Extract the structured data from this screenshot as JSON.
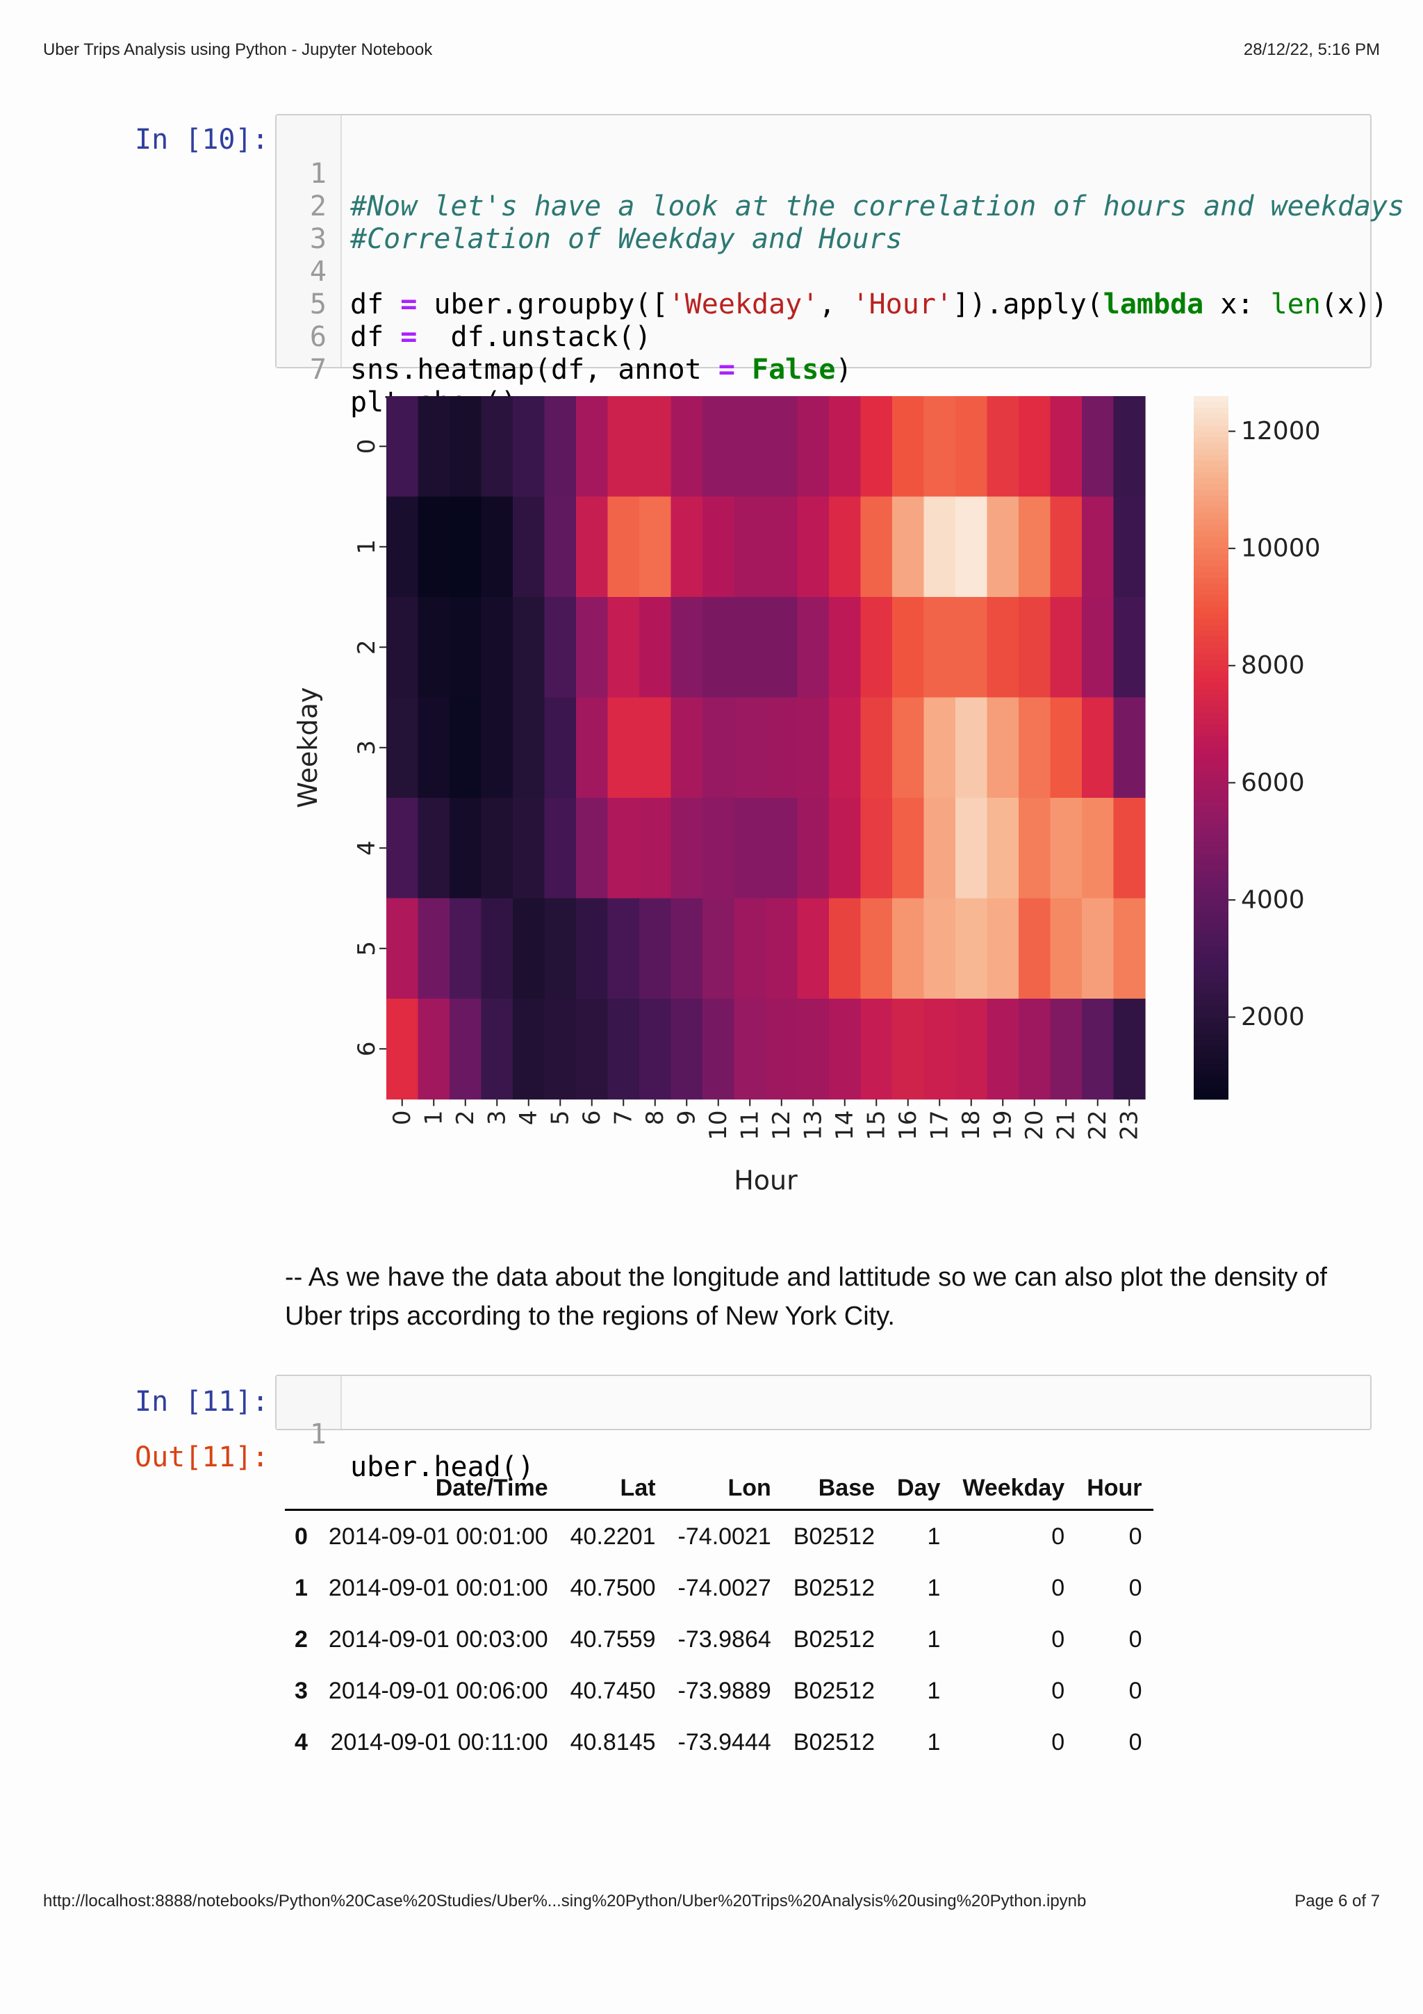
{
  "header": {
    "title": "Uber Trips Analysis using Python - Jupyter Notebook",
    "datetime": "28/12/22, 5:16 PM"
  },
  "footer": {
    "url": "http://localhost:8888/notebooks/Python%20Case%20Studies/Uber%...sing%20Python/Uber%20Trips%20Analysis%20using%20Python.ipynb",
    "page": "Page 6 of 7"
  },
  "cell10": {
    "prompt": "In [10]:",
    "line_numbers": [
      "1",
      "2",
      "3",
      "4",
      "5",
      "6",
      "7"
    ],
    "lines": {
      "l1": "#Now let's have a look at the correlation of hours and weekdays",
      "l2": "#Correlation of Weekday and Hours",
      "l4_a": "df ",
      "l4_eq": "=",
      "l4_b": " uber.groupby([",
      "l4_s1": "'Weekday'",
      "l4_c": ", ",
      "l4_s2": "'Hour'",
      "l4_d": "]).apply(",
      "l4_kw": "lambda",
      "l4_e": " x: ",
      "l4_bi": "len",
      "l4_f": "(x))",
      "l5_a": "df ",
      "l5_eq": "=",
      "l5_b": "  df.unstack()",
      "l6_a": "sns.heatmap(df, annot ",
      "l6_eq": "=",
      "l6_sp": " ",
      "l6_kw": "False",
      "l6_b": ")",
      "l7": "plt.show()"
    }
  },
  "markdown": {
    "text": "-- As we have the data about the longitude and lattitude so we can also plot the density of Uber trips according to the regions of New York City."
  },
  "cell11": {
    "prompt_in": "In [11]:",
    "prompt_out": "Out[11]:",
    "line_number": "1",
    "code": "uber.head()"
  },
  "table": {
    "columns": [
      "",
      "Date/Time",
      "Lat",
      "Lon",
      "Base",
      "Day",
      "Weekday",
      "Hour"
    ],
    "rows": [
      [
        "0",
        "2014-09-01 00:01:00",
        "40.2201",
        "-74.0021",
        "B02512",
        "1",
        "0",
        "0"
      ],
      [
        "1",
        "2014-09-01 00:01:00",
        "40.7500",
        "-74.0027",
        "B02512",
        "1",
        "0",
        "0"
      ],
      [
        "2",
        "2014-09-01 00:03:00",
        "40.7559",
        "-73.9864",
        "B02512",
        "1",
        "0",
        "0"
      ],
      [
        "3",
        "2014-09-01 00:06:00",
        "40.7450",
        "-73.9889",
        "B02512",
        "1",
        "0",
        "0"
      ],
      [
        "4",
        "2014-09-01 00:11:00",
        "40.8145",
        "-73.9444",
        "B02512",
        "1",
        "0",
        "0"
      ]
    ]
  },
  "chart_data": {
    "type": "heatmap",
    "xlabel": "Hour",
    "ylabel": "Weekday",
    "x_categories": [
      "0",
      "1",
      "2",
      "3",
      "4",
      "5",
      "6",
      "7",
      "8",
      "9",
      "10",
      "11",
      "12",
      "13",
      "14",
      "15",
      "16",
      "17",
      "18",
      "19",
      "20",
      "21",
      "22",
      "23"
    ],
    "y_categories": [
      "0",
      "1",
      "2",
      "3",
      "4",
      "5",
      "6"
    ],
    "colorbar_ticks": [
      2000,
      4000,
      6000,
      8000,
      10000,
      12000
    ],
    "vmin": 600,
    "vmax": 12600,
    "colormap": "rocket",
    "values": [
      [
        3000,
        1600,
        1400,
        2100,
        2700,
        3900,
        6000,
        7200,
        7200,
        6000,
        5400,
        5400,
        5400,
        6000,
        6800,
        7800,
        9000,
        9400,
        9200,
        8200,
        7800,
        6800,
        4600,
        2700
      ],
      [
        1500,
        800,
        700,
        1100,
        2300,
        4000,
        7000,
        9400,
        9600,
        6900,
        6400,
        6000,
        6000,
        6700,
        7600,
        9400,
        11000,
        12300,
        12500,
        11000,
        10000,
        8400,
        6000,
        2800
      ],
      [
        1800,
        1100,
        1000,
        1300,
        1900,
        3300,
        5400,
        6900,
        6400,
        5100,
        4800,
        4800,
        4800,
        5600,
        6700,
        8000,
        9000,
        9400,
        9400,
        8800,
        8500,
        7400,
        5900,
        3100
      ],
      [
        1900,
        1200,
        900,
        1300,
        1900,
        2800,
        5900,
        7600,
        7600,
        6100,
        5600,
        5700,
        5800,
        5900,
        6900,
        8400,
        9600,
        11100,
        11800,
        10800,
        9800,
        9100,
        7600,
        4700
      ],
      [
        3200,
        2000,
        1300,
        1700,
        2000,
        3100,
        5000,
        6300,
        6200,
        5500,
        5300,
        5100,
        5100,
        5800,
        6800,
        8300,
        9300,
        11000,
        12000,
        11400,
        10000,
        10600,
        10300,
        8700
      ],
      [
        6300,
        4500,
        3300,
        2400,
        1600,
        1900,
        2400,
        3200,
        3800,
        4400,
        5200,
        5800,
        6000,
        6900,
        8500,
        9500,
        10600,
        11100,
        11400,
        11100,
        9400,
        10300,
        10800,
        10000
      ],
      [
        7800,
        5900,
        4300,
        2700,
        1800,
        2000,
        2200,
        2700,
        3200,
        3800,
        4700,
        5600,
        5800,
        5900,
        6300,
        6900,
        7300,
        7100,
        7000,
        6300,
        5800,
        5000,
        3900,
        2400
      ]
    ]
  }
}
